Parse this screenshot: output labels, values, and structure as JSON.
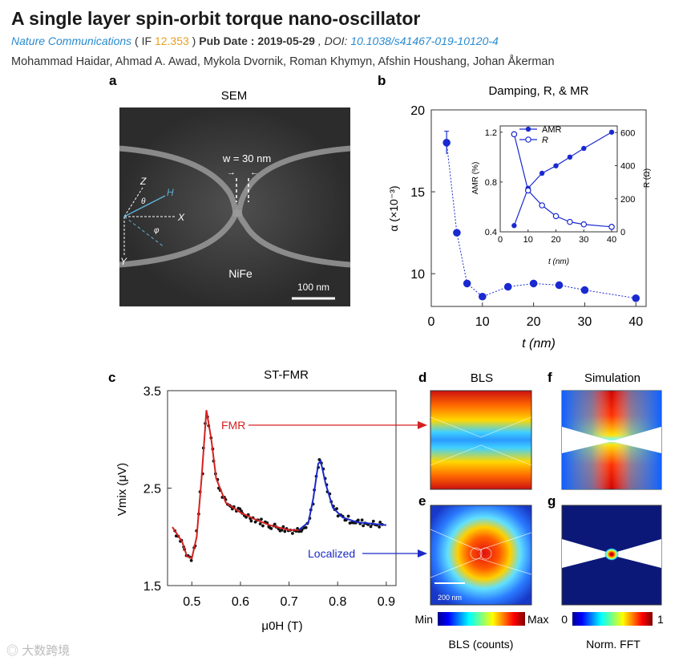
{
  "header": {
    "title": "A single layer spin-orbit torque nano-oscillator",
    "journal": "Nature Communications",
    "if_open": " ( IF ",
    "if_value": "12.353",
    "if_close": " )",
    "pub_date_label": "Pub Date : 2019-05-29",
    "doi_prefix": " , DOI: ",
    "doi": "10.1038/s41467-019-10120-4",
    "authors": "Mohammad Haidar, Ahmad A. Awad, Mykola Dvornik, Roman Khymyn, Afshin Houshang, Johan Åkerman"
  },
  "panel_a": {
    "letter": "a",
    "title": "SEM",
    "width_label": "w = 30 nm",
    "material": "NiFe",
    "scale_bar": "100 nm",
    "axes": {
      "z": "Z",
      "x": "X",
      "y": "Y",
      "h": "H",
      "theta": "θ",
      "phi": "φ"
    }
  },
  "panel_b": {
    "letter": "b",
    "title": "Damping, R, & MR",
    "ylabel": "α (×10⁻³)",
    "xlabel": "t (nm)",
    "inset": {
      "ylabel_left": "AMR (%)",
      "ylabel_right": "R (Ω)",
      "xlabel": "t (nm)",
      "legend_amr": "AMR",
      "legend_r": "R"
    }
  },
  "panel_c": {
    "letter": "c",
    "title": "ST-FMR",
    "ylabel": "Vmix (μV)",
    "xlabel": "μ0H (T)",
    "fmr_label": "FMR",
    "localized_label": "Localized"
  },
  "panel_d": {
    "letter": "d",
    "title": "BLS"
  },
  "panel_e": {
    "letter": "e",
    "scale_bar": "200 nm"
  },
  "panel_f": {
    "letter": "f",
    "title": "Simulation"
  },
  "panel_g": {
    "letter": "g"
  },
  "colorbars": {
    "bls": {
      "min": "Min",
      "max": "Max",
      "label": "BLS (counts)"
    },
    "fft": {
      "min": "0",
      "max": "1",
      "label": "Norm. FFT"
    }
  },
  "watermark": "大数跨境",
  "colors": {
    "fmr": "#d42020",
    "localized": "#1a2ac8",
    "marker": "#1a2ad0",
    "journal": "#2a8bd0",
    "if": "#e8a020"
  },
  "chart_data": [
    {
      "id": "b-main",
      "type": "scatter",
      "title": "Damping, R, & MR",
      "xlabel": "t (nm)",
      "ylabel": "α (×10⁻³)",
      "xlim": [
        0,
        42
      ],
      "ylim": [
        8,
        20
      ],
      "xticks": [
        0,
        10,
        20,
        30,
        40
      ],
      "yticks": [
        10,
        15,
        20
      ],
      "x": [
        3,
        5,
        7,
        10,
        15,
        20,
        25,
        30,
        40
      ],
      "y": [
        18.0,
        12.5,
        9.4,
        8.6,
        9.2,
        9.4,
        9.3,
        9.0,
        8.5
      ],
      "error": [
        0.7,
        0.1,
        0.1,
        0.1,
        0.1,
        0.1,
        0.1,
        0.1,
        0.1
      ]
    },
    {
      "id": "b-inset",
      "type": "line",
      "xlabel": "t (nm)",
      "xlim": [
        0,
        42
      ],
      "xticks": [
        0,
        10,
        20,
        30,
        40
      ],
      "y_left": {
        "label": "AMR (%)",
        "lim": [
          0.4,
          1.25
        ],
        "ticks": [
          0.4,
          0.8,
          1.2
        ]
      },
      "y_right": {
        "label": "R (Ω)",
        "lim": [
          0,
          640
        ],
        "ticks": [
          0,
          200,
          400,
          600
        ]
      },
      "series": [
        {
          "name": "AMR",
          "axis": "left",
          "x": [
            5,
            10,
            15,
            20,
            25,
            30,
            40
          ],
          "values": [
            0.45,
            0.75,
            0.87,
            0.93,
            1.0,
            1.07,
            1.2
          ]
        },
        {
          "name": "R",
          "axis": "right",
          "x": [
            5,
            10,
            15,
            20,
            25,
            30,
            40
          ],
          "values": [
            590,
            250,
            160,
            95,
            60,
            45,
            30
          ]
        }
      ]
    },
    {
      "id": "c",
      "type": "line",
      "title": "ST-FMR",
      "xlabel": "μ0H (T)",
      "ylabel": "Vmix (μV)",
      "xlim": [
        0.45,
        0.92
      ],
      "ylim": [
        1.5,
        3.5
      ],
      "xticks": [
        0.5,
        0.6,
        0.7,
        0.8,
        0.9
      ],
      "yticks": [
        1.5,
        2.5,
        3.5
      ],
      "series": [
        {
          "name": "FMR",
          "x": [
            0.46,
            0.48,
            0.49,
            0.5,
            0.51,
            0.52,
            0.53,
            0.54,
            0.55,
            0.57,
            0.6,
            0.63,
            0.66,
            0.7,
            0.72
          ],
          "values": [
            2.1,
            1.95,
            1.8,
            1.78,
            2.0,
            2.6,
            3.3,
            3.0,
            2.6,
            2.35,
            2.25,
            2.18,
            2.12,
            2.07,
            2.07
          ]
        },
        {
          "name": "Localized",
          "x": [
            0.72,
            0.74,
            0.75,
            0.76,
            0.765,
            0.775,
            0.79,
            0.81,
            0.84,
            0.88,
            0.9
          ],
          "values": [
            2.07,
            2.15,
            2.4,
            2.75,
            2.78,
            2.55,
            2.3,
            2.2,
            2.15,
            2.13,
            2.12
          ]
        }
      ]
    }
  ]
}
